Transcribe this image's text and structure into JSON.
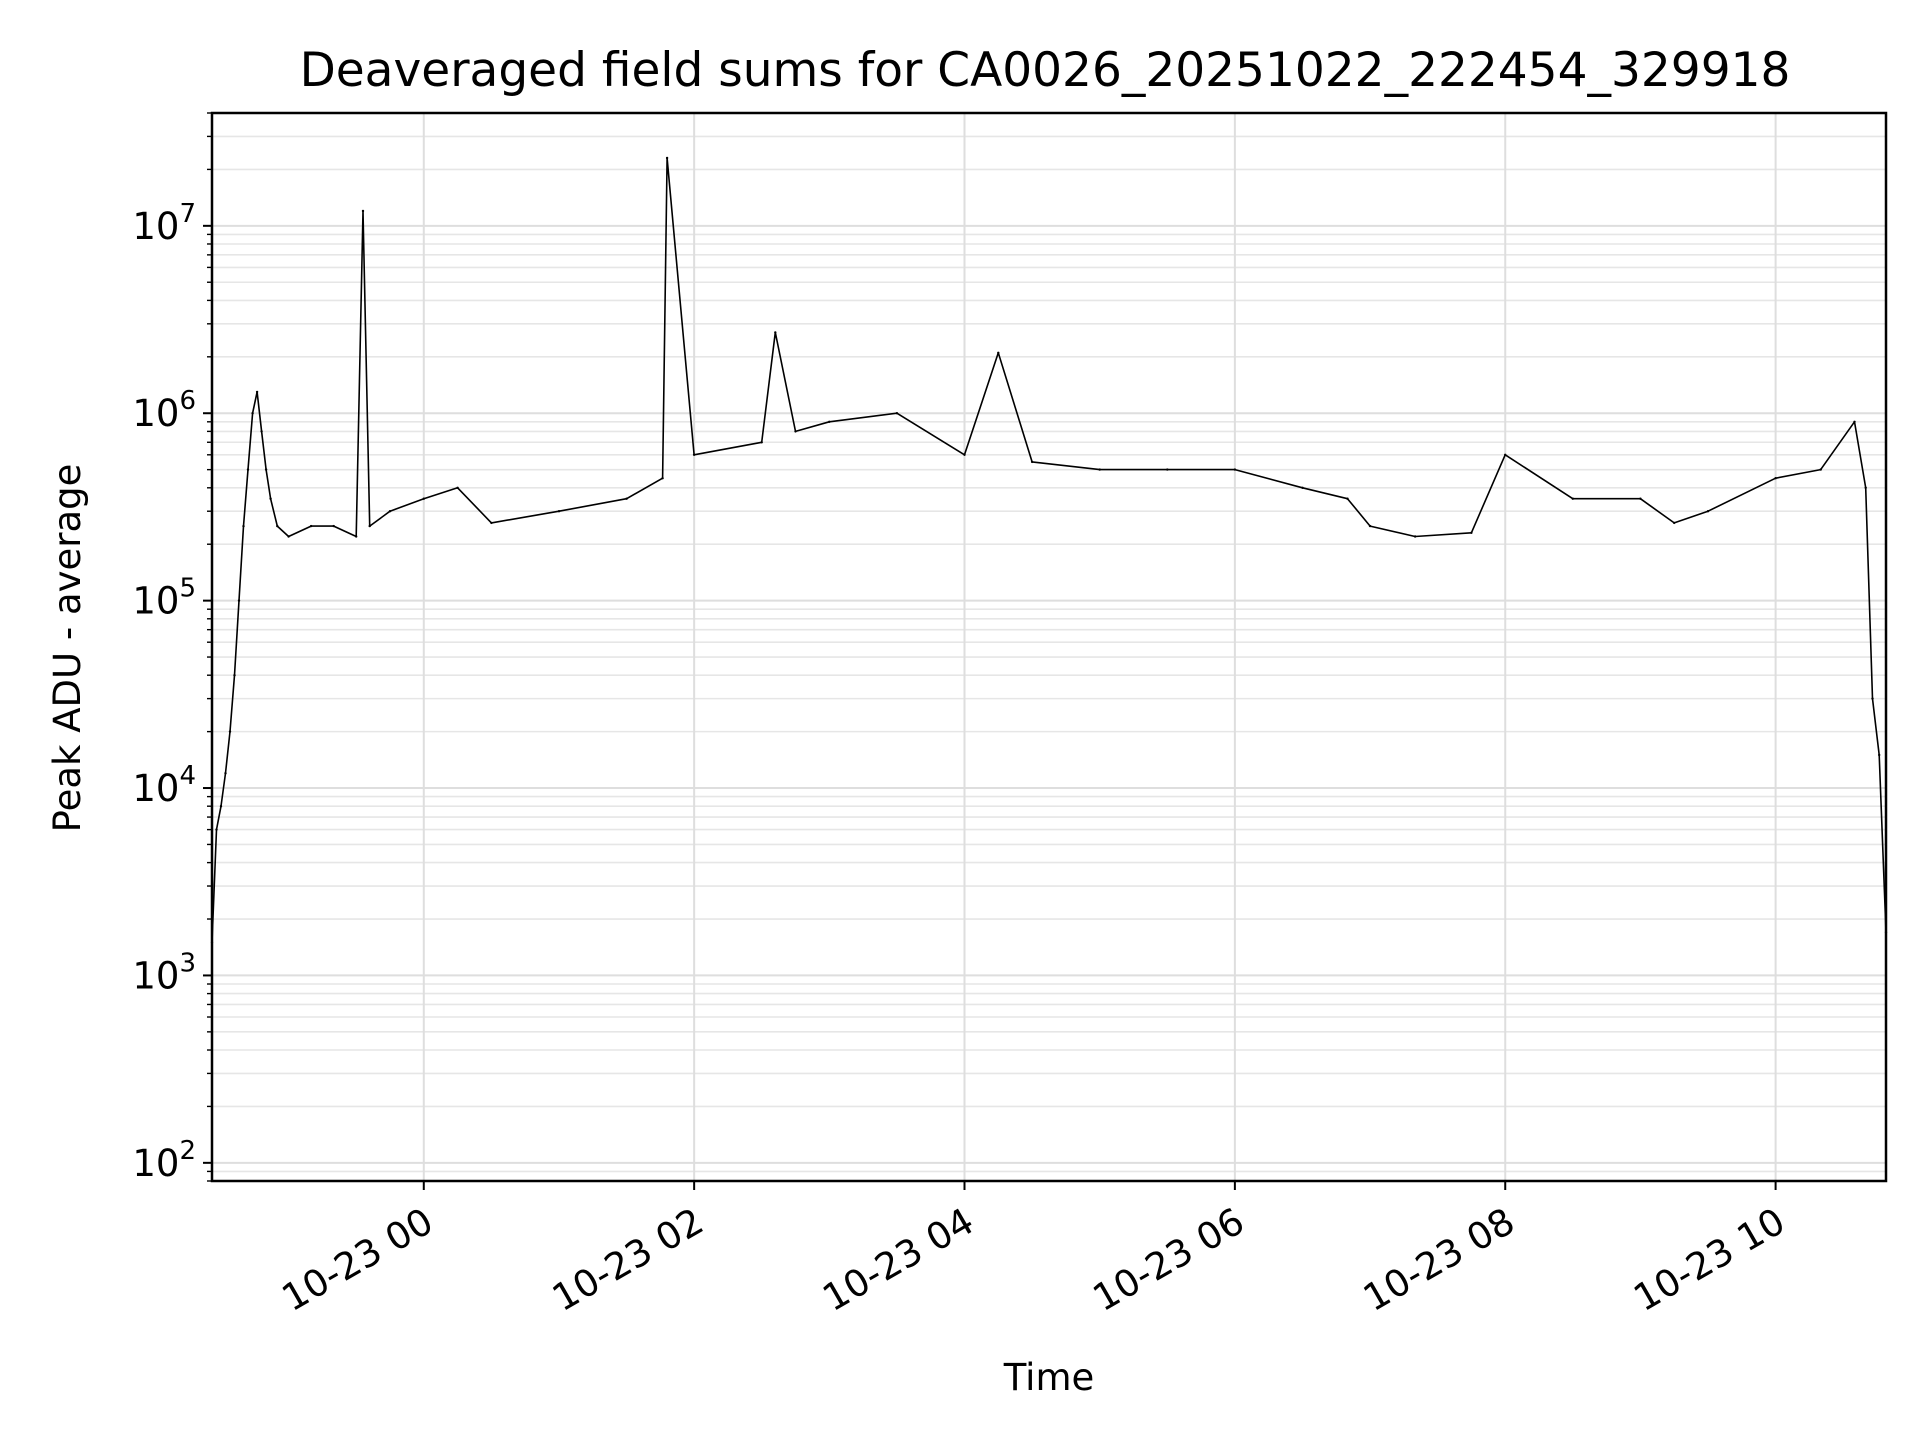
{
  "chart_data": {
    "type": "line",
    "title": "Deaveraged field sums for CA0026_20251022_222454_329918",
    "xlabel": "Time",
    "ylabel": "Peak ADU - average",
    "yscale": "log",
    "ylim": [
      80,
      40000000
    ],
    "xlim": [
      "2025-10-22 22:26",
      "2025-10-23 10:49"
    ],
    "grid": true,
    "line_color": "#000000",
    "x_ticks": [
      {
        "label": "10-23 00",
        "time": "2025-10-23 00:00"
      },
      {
        "label": "10-23 02",
        "time": "2025-10-23 02:00"
      },
      {
        "label": "10-23 04",
        "time": "2025-10-23 04:00"
      },
      {
        "label": "10-23 06",
        "time": "2025-10-23 06:00"
      },
      {
        "label": "10-23 08",
        "time": "2025-10-23 08:00"
      },
      {
        "label": "10-23 10",
        "time": "2025-10-23 10:00"
      }
    ],
    "y_ticks": [
      {
        "base": "10",
        "exp": "2",
        "value": 100
      },
      {
        "base": "10",
        "exp": "3",
        "value": 1000
      },
      {
        "base": "10",
        "exp": "4",
        "value": 10000
      },
      {
        "base": "10",
        "exp": "5",
        "value": 100000
      },
      {
        "base": "10",
        "exp": "6",
        "value": 1000000
      },
      {
        "base": "10",
        "exp": "7",
        "value": 10000000
      }
    ],
    "series": [
      {
        "x": [
          "2025-10-22 22:26",
          "2025-10-22 22:28",
          "2025-10-22 22:30",
          "2025-10-22 22:32",
          "2025-10-22 22:34",
          "2025-10-22 22:36",
          "2025-10-22 22:38",
          "2025-10-22 22:40",
          "2025-10-22 22:42",
          "2025-10-22 22:44",
          "2025-10-22 22:46",
          "2025-10-22 22:48",
          "2025-10-22 22:50",
          "2025-10-22 22:52",
          "2025-10-22 22:55",
          "2025-10-22 23:00",
          "2025-10-22 23:10",
          "2025-10-22 23:20",
          "2025-10-22 23:30",
          "2025-10-22 23:33",
          "2025-10-22 23:36",
          "2025-10-22 23:45",
          "2025-10-23 00:00",
          "2025-10-23 00:15",
          "2025-10-23 00:30",
          "2025-10-23 01:00",
          "2025-10-23 01:30",
          "2025-10-23 01:46",
          "2025-10-23 01:48",
          "2025-10-23 02:00",
          "2025-10-23 02:30",
          "2025-10-23 02:36",
          "2025-10-23 02:45",
          "2025-10-23 03:00",
          "2025-10-23 03:30",
          "2025-10-23 04:00",
          "2025-10-23 04:15",
          "2025-10-23 04:30",
          "2025-10-23 05:00",
          "2025-10-23 05:30",
          "2025-10-23 06:00",
          "2025-10-23 06:30",
          "2025-10-23 06:50",
          "2025-10-23 07:00",
          "2025-10-23 07:20",
          "2025-10-23 07:45",
          "2025-10-23 08:00",
          "2025-10-23 08:30",
          "2025-10-23 09:00",
          "2025-10-23 09:15",
          "2025-10-23 09:30",
          "2025-10-23 10:00",
          "2025-10-23 10:20",
          "2025-10-23 10:35",
          "2025-10-23 10:40",
          "2025-10-23 10:43",
          "2025-10-23 10:46",
          "2025-10-23 10:49"
        ],
        "y": [
          1500,
          6000,
          8000,
          12000,
          20000,
          40000,
          100000,
          250000,
          500000,
          1000000,
          1300000,
          800000,
          500000,
          350000,
          250000,
          220000,
          250000,
          250000,
          220000,
          12000000,
          250000,
          300000,
          350000,
          400000,
          260000,
          300000,
          350000,
          450000,
          23000000,
          600000,
          700000,
          2700000,
          800000,
          900000,
          1000000,
          600000,
          2100000,
          550000,
          500000,
          500000,
          500000,
          400000,
          350000,
          250000,
          220000,
          230000,
          600000,
          350000,
          350000,
          260000,
          300000,
          450000,
          500000,
          900000,
          400000,
          30000,
          15000,
          1700
        ]
      }
    ]
  }
}
